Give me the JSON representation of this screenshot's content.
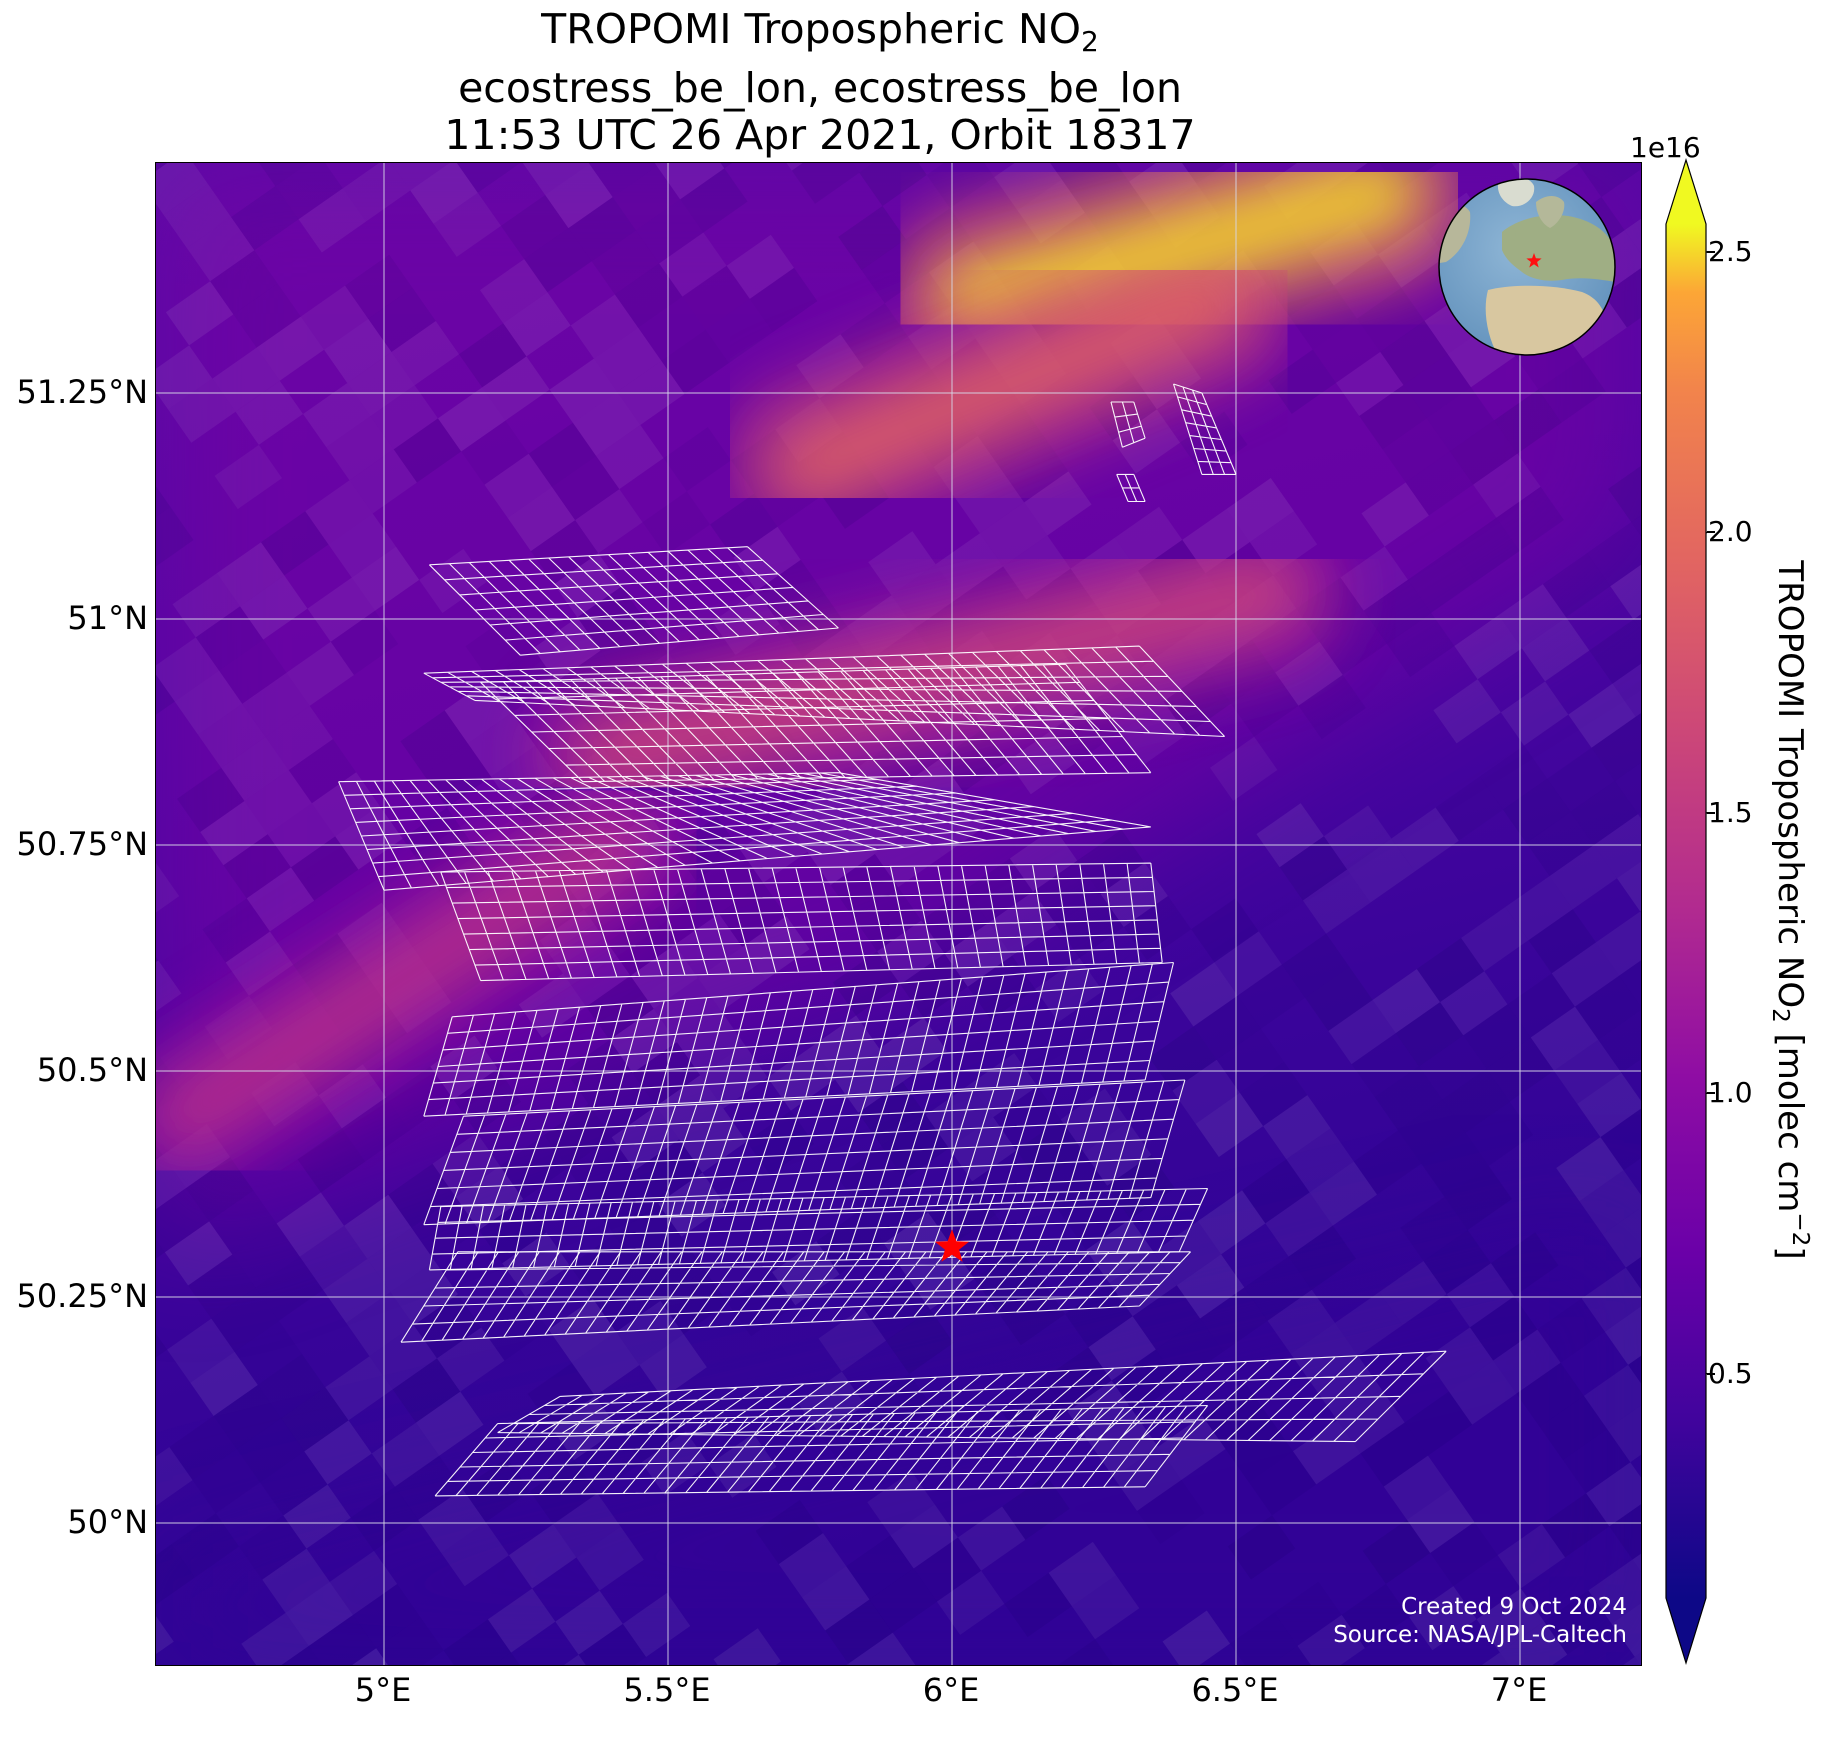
{
  "title": {
    "line1": "TROPOMI Tropospheric NO",
    "line1_sub": "2",
    "line2": "ecostress_be_lon, ecostress_be_lon",
    "line3": "11:53 UTC 26 Apr 2021, Orbit 18317"
  },
  "credits": {
    "created": "Created 9 Oct 2024",
    "source": "Source: NASA/JPL-Caltech"
  },
  "colorbar": {
    "label_main": "TROPOMI Tropospheric NO",
    "label_sub": "2",
    "label_unit_open": " [molec cm",
    "label_sup": "−2",
    "label_unit_close": "]",
    "exponent": "1e16",
    "ticks": [
      "0.5",
      "1.0",
      "1.5",
      "2.0",
      "2.5"
    ],
    "colormap": "plasma",
    "extend": "both"
  },
  "chart_data": {
    "type": "heatmap",
    "projection": "lat-lon",
    "variable": "TROPOMI Tropospheric NO2",
    "units": "molec cm-2",
    "scale": 1e+16,
    "vmin": 0.1,
    "vmax": 2.55,
    "xlim": [
      4.6,
      7.2
    ],
    "ylim": [
      49.83,
      51.5
    ],
    "xticks": [
      5.0,
      5.5,
      6.0,
      6.5,
      7.0
    ],
    "xtick_labels": [
      "5°E",
      "5.5°E",
      "6°E",
      "6.5°E",
      "7°E"
    ],
    "yticks": [
      50.0,
      50.25,
      50.5,
      50.75,
      51.0,
      51.25
    ],
    "ytick_labels": [
      "50°N",
      "50.25°N",
      "50.5°N",
      "50.75°N",
      "51°N",
      "51.25°N"
    ],
    "grid": true,
    "site_marker": {
      "lon": 6.0,
      "lat": 50.305,
      "symbol": "star",
      "color": "#ff0000"
    },
    "no2_features": [
      {
        "kind": "plume",
        "from": [
          6.05,
          51.35
        ],
        "to": [
          6.75,
          51.47
        ],
        "peak": 2.5
      },
      {
        "kind": "plume",
        "from": [
          5.75,
          51.17
        ],
        "to": [
          6.45,
          51.35
        ],
        "peak": 1.9
      },
      {
        "kind": "plume",
        "from": [
          5.4,
          50.85
        ],
        "to": [
          6.55,
          51.03
        ],
        "peak": 1.6
      },
      {
        "kind": "plume",
        "from": [
          4.65,
          50.45
        ],
        "to": [
          5.4,
          50.75
        ],
        "peak": 1.4
      },
      {
        "kind": "background_north",
        "value": 0.85
      },
      {
        "kind": "background_south",
        "value": 0.35
      }
    ],
    "footprints": [
      {
        "corners": [
          [
            5.08,
            51.06
          ],
          [
            5.64,
            51.08
          ],
          [
            5.8,
            50.99
          ],
          [
            5.24,
            50.96
          ]
        ],
        "nu": 16,
        "nv": 6
      },
      {
        "corners": [
          [
            5.07,
            50.94
          ],
          [
            6.33,
            50.97
          ],
          [
            6.48,
            50.87
          ],
          [
            5.16,
            50.91
          ]
        ],
        "nu": 30,
        "nv": 6
      },
      {
        "corners": [
          [
            5.17,
            50.93
          ],
          [
            6.2,
            50.95
          ],
          [
            6.35,
            50.83
          ],
          [
            5.35,
            50.82
          ]
        ],
        "nu": 26,
        "nv": 6
      },
      {
        "corners": [
          [
            4.92,
            50.82
          ],
          [
            5.8,
            50.83
          ],
          [
            6.35,
            50.77
          ],
          [
            5.0,
            50.7
          ]
        ],
        "nu": 28,
        "nv": 8
      },
      {
        "corners": [
          [
            5.1,
            50.72
          ],
          [
            6.35,
            50.73
          ],
          [
            6.37,
            50.62
          ],
          [
            5.17,
            50.6
          ]
        ],
        "nu": 30,
        "nv": 7
      },
      {
        "corners": [
          [
            5.12,
            50.56
          ],
          [
            6.39,
            50.62
          ],
          [
            6.34,
            50.49
          ],
          [
            5.07,
            50.45
          ]
        ],
        "nu": 34,
        "nv": 6
      },
      {
        "corners": [
          [
            5.14,
            50.45
          ],
          [
            6.41,
            50.49
          ],
          [
            6.35,
            50.36
          ],
          [
            5.07,
            50.33
          ]
        ],
        "nu": 34,
        "nv": 6
      },
      {
        "corners": [
          [
            5.1,
            50.35
          ],
          [
            6.45,
            50.37
          ],
          [
            6.4,
            50.3
          ],
          [
            5.08,
            50.28
          ]
        ],
        "nu": 36,
        "nv": 4
      },
      {
        "corners": [
          [
            5.13,
            50.3
          ],
          [
            6.42,
            50.3
          ],
          [
            6.33,
            50.24
          ],
          [
            5.03,
            50.2
          ]
        ],
        "nu": 36,
        "nv": 5
      },
      {
        "corners": [
          [
            5.31,
            50.14
          ],
          [
            6.87,
            50.19
          ],
          [
            6.71,
            50.09
          ],
          [
            5.2,
            50.1
          ]
        ],
        "nu": 40,
        "nv": 4
      },
      {
        "corners": [
          [
            5.2,
            50.11
          ],
          [
            6.45,
            50.13
          ],
          [
            6.34,
            50.04
          ],
          [
            5.09,
            50.03
          ]
        ],
        "nu": 34,
        "nv": 5
      },
      {
        "corners": [
          [
            6.28,
            51.24
          ],
          [
            6.32,
            51.24
          ],
          [
            6.34,
            51.2
          ],
          [
            6.3,
            51.19
          ]
        ],
        "nu": 2,
        "nv": 3
      },
      {
        "corners": [
          [
            6.39,
            51.26
          ],
          [
            6.44,
            51.25
          ],
          [
            6.5,
            51.16
          ],
          [
            6.44,
            51.16
          ]
        ],
        "nu": 3,
        "nv": 7
      },
      {
        "corners": [
          [
            6.29,
            51.16
          ],
          [
            6.32,
            51.16
          ],
          [
            6.34,
            51.13
          ],
          [
            6.31,
            51.13
          ]
        ],
        "nu": 2,
        "nv": 2
      }
    ]
  },
  "inset_globe": {
    "marker": "star",
    "marker_color": "#ff0000",
    "center_lon": 6.0,
    "center_lat": 50.3
  }
}
